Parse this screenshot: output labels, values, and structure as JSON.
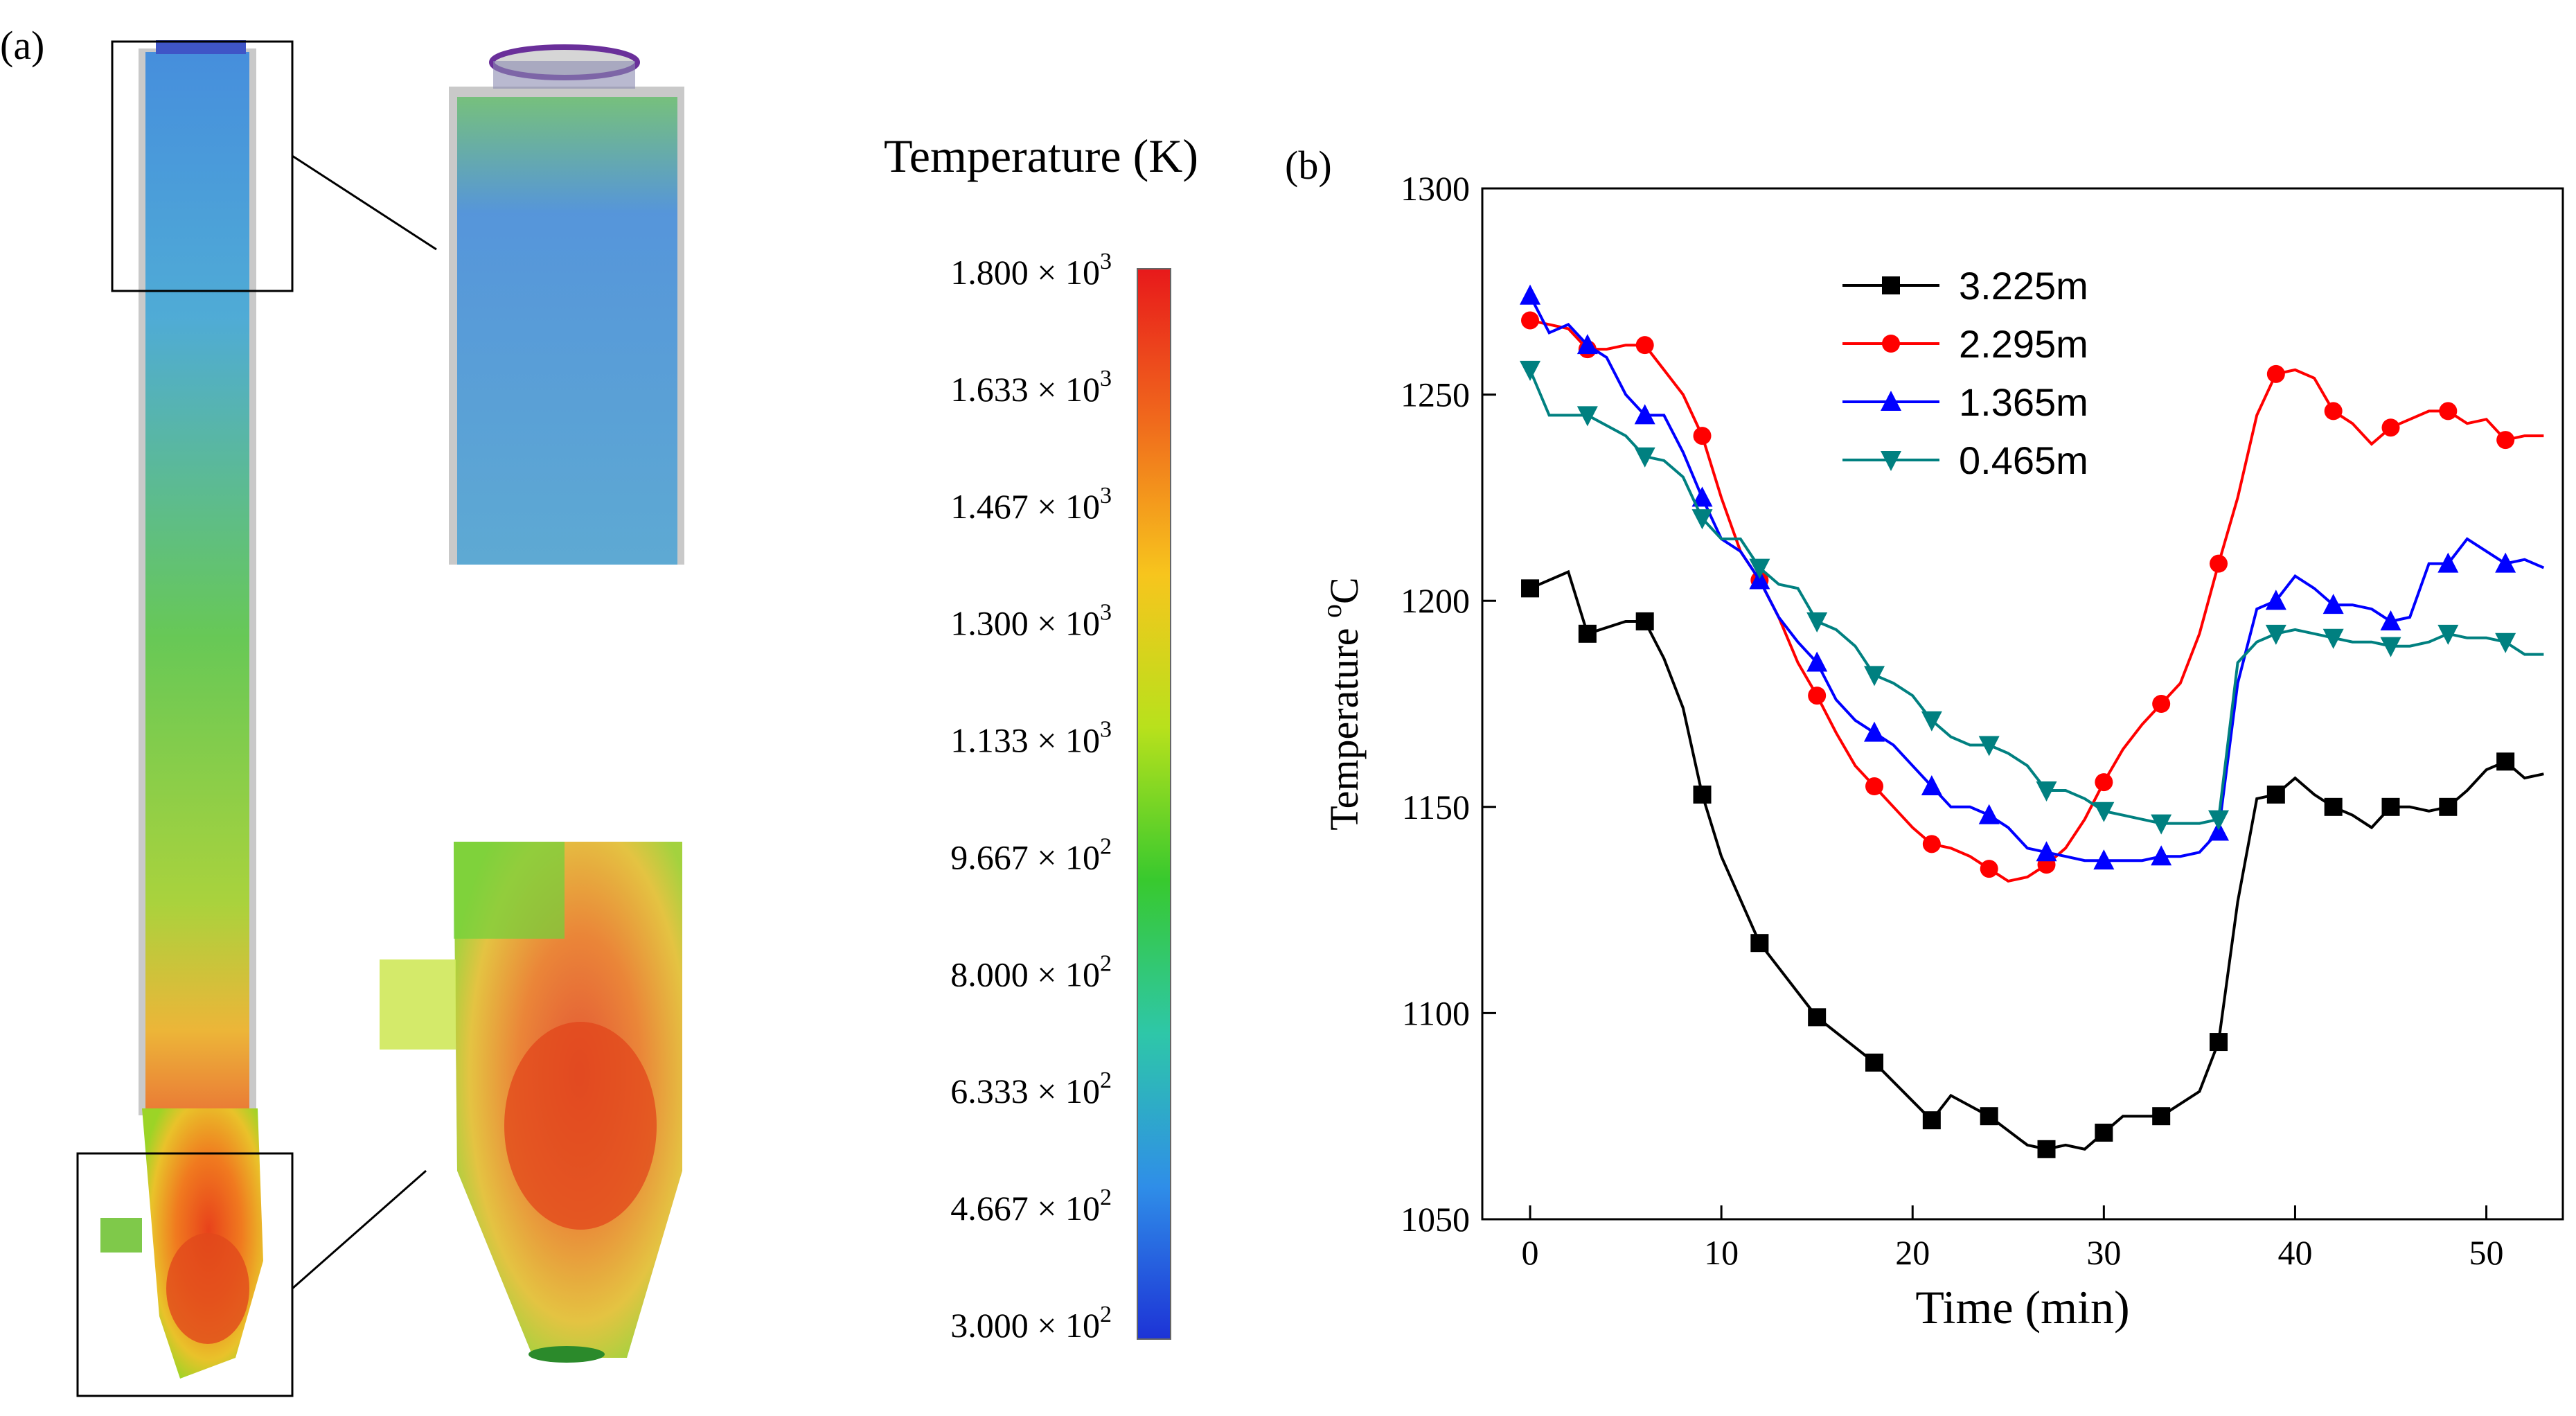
{
  "panel_a": {
    "label": "(a)",
    "colorbar": {
      "title": "Temperature (K)",
      "ticks": [
        {
          "mant": "1.800",
          "exp": "3"
        },
        {
          "mant": "1.633",
          "exp": "3"
        },
        {
          "mant": "1.467",
          "exp": "3"
        },
        {
          "mant": "1.300",
          "exp": "3"
        },
        {
          "mant": "1.133",
          "exp": "3"
        },
        {
          "mant": "9.667",
          "exp": "2"
        },
        {
          "mant": "8.000",
          "exp": "2"
        },
        {
          "mant": "6.333",
          "exp": "2"
        },
        {
          "mant": "4.667",
          "exp": "2"
        },
        {
          "mant": "3.000",
          "exp": "2"
        }
      ],
      "colors": [
        "#e8191b",
        "#f06a1c",
        "#f7c51d",
        "#b8e11c",
        "#38c92e",
        "#2ec7a8",
        "#2f8ee8",
        "#1d33d6"
      ]
    }
  },
  "panel_b": {
    "label": "(b)"
  },
  "chart_data": {
    "type": "line",
    "xlabel": "Time (min)",
    "ylabel": "Temperature ",
    "ylabel_sup": "o",
    "ylabel_unit": "C",
    "xlim": [
      -2.5,
      54
    ],
    "ylim": [
      1050,
      1300
    ],
    "xticks": [
      0,
      10,
      20,
      30,
      40,
      50
    ],
    "yticks": [
      1050,
      1100,
      1150,
      1200,
      1250,
      1300
    ],
    "legend_position": "top-center",
    "series": [
      {
        "name": "3.225m",
        "color": "#000000",
        "marker": "square",
        "x": [
          0,
          2,
          3,
          5,
          6,
          7,
          8,
          9,
          10,
          12,
          15,
          18,
          21,
          22,
          24,
          26,
          27,
          28,
          29,
          30,
          31,
          33,
          35,
          36,
          37,
          38,
          39,
          40,
          41,
          42,
          43,
          44,
          45,
          46,
          47,
          48,
          49,
          50,
          51,
          52,
          53
        ],
        "y": [
          1203,
          1207,
          1192,
          1195,
          1195,
          1186,
          1174,
          1153,
          1138,
          1117,
          1099,
          1088,
          1074,
          1080,
          1075,
          1068,
          1067,
          1068,
          1067,
          1071,
          1075,
          1075,
          1081,
          1093,
          1127,
          1152,
          1153,
          1157,
          1153,
          1150,
          1148,
          1145,
          1150,
          1150,
          1149,
          1150,
          1154,
          1159,
          1161,
          1157,
          1158
        ]
      },
      {
        "name": "2.295m",
        "color": "#ff0000",
        "marker": "circle",
        "x": [
          0,
          1,
          2,
          3,
          4,
          5,
          6,
          7,
          8,
          9,
          10,
          11,
          12,
          13,
          14,
          15,
          16,
          17,
          18,
          19,
          20,
          21,
          22,
          23,
          24,
          25,
          26,
          27,
          28,
          29,
          30,
          31,
          32,
          33,
          34,
          35,
          36,
          37,
          38,
          39,
          40,
          41,
          42,
          43,
          44,
          45,
          46,
          47,
          48,
          49,
          50,
          51,
          52,
          53
        ],
        "y": [
          1268,
          1267,
          1266,
          1261,
          1261,
          1262,
          1262,
          1256,
          1250,
          1240,
          1225,
          1212,
          1205,
          1196,
          1185,
          1177,
          1168,
          1160,
          1155,
          1150,
          1145,
          1141,
          1140,
          1138,
          1135,
          1132,
          1133,
          1136,
          1140,
          1147,
          1156,
          1164,
          1170,
          1175,
          1180,
          1192,
          1209,
          1225,
          1245,
          1255,
          1256,
          1254,
          1246,
          1243,
          1238,
          1242,
          1244,
          1246,
          1246,
          1243,
          1244,
          1239,
          1240,
          1240
        ]
      },
      {
        "name": "1.365m",
        "color": "#0000ff",
        "marker": "triangle-up",
        "x": [
          0,
          1,
          2,
          3,
          4,
          5,
          6,
          7,
          8,
          9,
          10,
          11,
          12,
          13,
          14,
          15,
          16,
          17,
          18,
          19,
          20,
          21,
          22,
          23,
          24,
          25,
          26,
          27,
          28,
          29,
          30,
          31,
          32,
          33,
          34,
          35,
          36,
          37,
          38,
          39,
          40,
          41,
          42,
          43,
          44,
          45,
          46,
          47,
          48,
          49,
          50,
          51,
          52,
          53
        ],
        "y": [
          1274,
          1265,
          1267,
          1262,
          1259,
          1250,
          1245,
          1245,
          1236,
          1225,
          1215,
          1212,
          1205,
          1196,
          1190,
          1185,
          1176,
          1171,
          1168,
          1165,
          1160,
          1155,
          1150,
          1150,
          1148,
          1145,
          1140,
          1139,
          1138,
          1137,
          1137,
          1137,
          1137,
          1138,
          1138,
          1139,
          1144,
          1180,
          1198,
          1200,
          1206,
          1203,
          1199,
          1199,
          1198,
          1195,
          1196,
          1209,
          1209,
          1215,
          1212,
          1209,
          1210,
          1208
        ]
      },
      {
        "name": "0.465m",
        "color": "#008080",
        "marker": "triangle-down",
        "x": [
          0,
          1,
          3,
          5,
          6,
          7,
          8,
          9,
          10,
          11,
          12,
          13,
          14,
          15,
          16,
          17,
          18,
          19,
          20,
          21,
          22,
          23,
          24,
          25,
          26,
          27,
          28,
          29,
          30,
          31,
          32,
          33,
          34,
          35,
          36,
          37,
          38,
          39,
          40,
          41,
          42,
          43,
          44,
          45,
          46,
          47,
          48,
          49,
          50,
          51,
          52,
          53
        ],
        "y": [
          1256,
          1245,
          1245,
          1240,
          1235,
          1234,
          1230,
          1220,
          1215,
          1215,
          1208,
          1204,
          1203,
          1195,
          1193,
          1189,
          1182,
          1180,
          1177,
          1171,
          1167,
          1165,
          1165,
          1163,
          1160,
          1154,
          1154,
          1152,
          1149,
          1148,
          1147,
          1146,
          1146,
          1146,
          1147,
          1185,
          1190,
          1192,
          1193,
          1192,
          1191,
          1190,
          1190,
          1189,
          1189,
          1190,
          1192,
          1191,
          1191,
          1190,
          1187,
          1187
        ]
      }
    ]
  }
}
